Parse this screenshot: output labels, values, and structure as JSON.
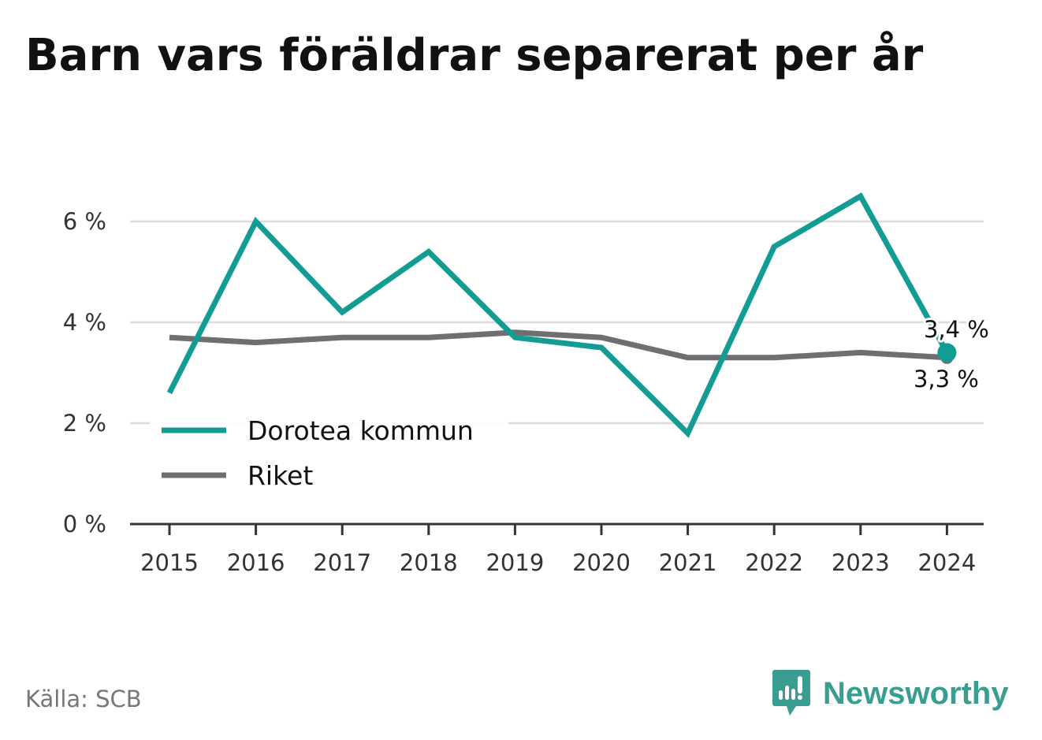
{
  "title": "Barn vars föräldrar separerat per år",
  "source": "Källa: SCB",
  "brand": "Newsworthy",
  "colors": {
    "dorotea": "#139c94",
    "riket": "#6f6e73",
    "grid": "#dcdcdc",
    "axis": "#333333",
    "brand": "#3a9d92"
  },
  "chart_data": {
    "type": "line",
    "x": [
      "2015",
      "2016",
      "2017",
      "2018",
      "2019",
      "2020",
      "2021",
      "2022",
      "2023",
      "2024"
    ],
    "series": [
      {
        "name": "Dorotea kommun",
        "values": [
          2.6,
          6.0,
          4.2,
          5.4,
          3.7,
          3.5,
          1.8,
          5.5,
          6.5,
          3.4
        ]
      },
      {
        "name": "Riket",
        "values": [
          3.7,
          3.6,
          3.7,
          3.7,
          3.8,
          3.7,
          3.3,
          3.3,
          3.4,
          3.3
        ]
      }
    ],
    "ylim": [
      0,
      7
    ],
    "yticks": [
      0,
      2,
      4,
      6
    ],
    "ytick_labels": [
      "0 %",
      "2 %",
      "4 %",
      "6 %"
    ],
    "end_labels": [
      "3,4 %",
      "3,3 %"
    ],
    "grid": true,
    "legend": "bottom-left"
  }
}
